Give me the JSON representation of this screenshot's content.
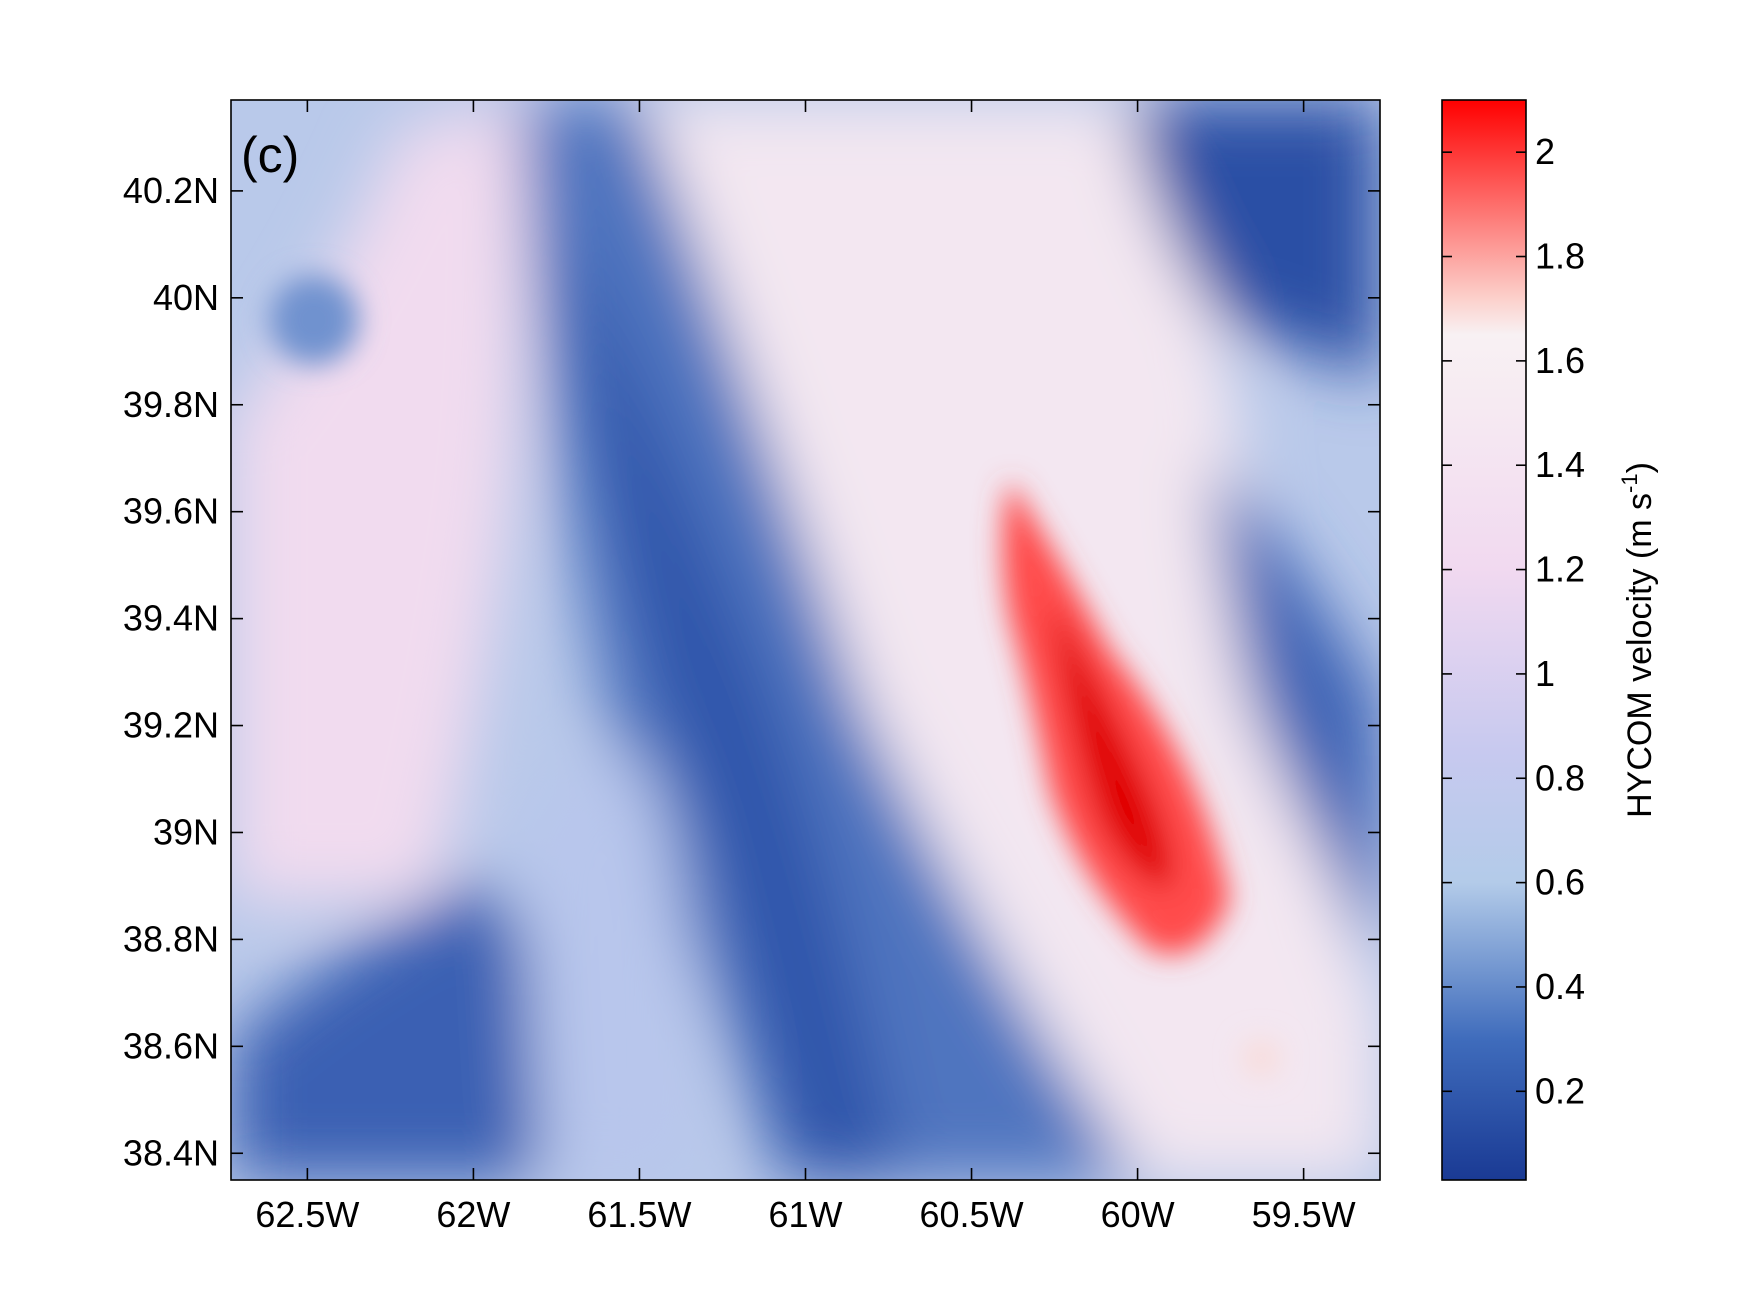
{
  "chart_data": {
    "type": "heatmap",
    "title": "",
    "panel_label": "(c)",
    "xlabel": "",
    "ylabel": "",
    "xlim": [
      -62.73,
      -59.27
    ],
    "ylim": [
      38.35,
      40.37
    ],
    "x_ticks": [
      {
        "value": -62.5,
        "label": "62.5W"
      },
      {
        "value": -62.0,
        "label": "62W"
      },
      {
        "value": -61.5,
        "label": "61.5W"
      },
      {
        "value": -61.0,
        "label": "61W"
      },
      {
        "value": -60.5,
        "label": "60.5W"
      },
      {
        "value": -60.0,
        "label": "60W"
      },
      {
        "value": -59.5,
        "label": "59.5W"
      }
    ],
    "y_ticks": [
      {
        "value": 38.4,
        "label": "38.4N"
      },
      {
        "value": 38.6,
        "label": "38.6N"
      },
      {
        "value": 38.8,
        "label": "38.8N"
      },
      {
        "value": 39.0,
        "label": "39N"
      },
      {
        "value": 39.2,
        "label": "39.2N"
      },
      {
        "value": 39.4,
        "label": "39.4N"
      },
      {
        "value": 39.6,
        "label": "39.6N"
      },
      {
        "value": 39.8,
        "label": "39.8N"
      },
      {
        "value": 40.0,
        "label": "40N"
      },
      {
        "value": 40.2,
        "label": "40.2N"
      }
    ],
    "colorbar": {
      "label_main": "HYCOM velocity (m s",
      "label_sup": "-1",
      "label_close": ")",
      "range": [
        0.03,
        2.1
      ],
      "ticks": [
        {
          "value": 0.2,
          "label": "0.2"
        },
        {
          "value": 0.4,
          "label": "0.4"
        },
        {
          "value": 0.6,
          "label": "0.6"
        },
        {
          "value": 0.8,
          "label": "0.8"
        },
        {
          "value": 1.0,
          "label": "1"
        },
        {
          "value": 1.2,
          "label": "1.2"
        },
        {
          "value": 1.4,
          "label": "1.4"
        },
        {
          "value": 1.6,
          "label": "1.6"
        },
        {
          "value": 1.8,
          "label": "1.8"
        },
        {
          "value": 2.0,
          "label": "2"
        }
      ],
      "colormap_stops": [
        {
          "value": 0.03,
          "color": "#1a3a94"
        },
        {
          "value": 0.3,
          "color": "#3f6cbc"
        },
        {
          "value": 0.6,
          "color": "#b3cbe9"
        },
        {
          "value": 0.85,
          "color": "#c7c9ef"
        },
        {
          "value": 1.2,
          "color": "#f1d9f0"
        },
        {
          "value": 1.65,
          "color": "#f8f1f3"
        },
        {
          "value": 1.72,
          "color": "#fcd0cb"
        },
        {
          "value": 2.1,
          "color": "#ff0000"
        }
      ]
    },
    "features": [
      {
        "name": "velocity jet core",
        "lon_range": [
          -60.4,
          -59.8
        ],
        "lat_range": [
          38.8,
          39.6
        ],
        "max_value": 2.1
      },
      {
        "name": "low-velocity band",
        "lon_range": [
          -61.9,
          -60.8
        ],
        "lat_range": [
          38.35,
          40.37
        ],
        "min_value": 0.1
      },
      {
        "name": "low-velocity region north-east",
        "lon_range": [
          -59.9,
          -59.27
        ],
        "lat_range": [
          39.9,
          40.37
        ],
        "min_value": 0.1
      }
    ]
  }
}
